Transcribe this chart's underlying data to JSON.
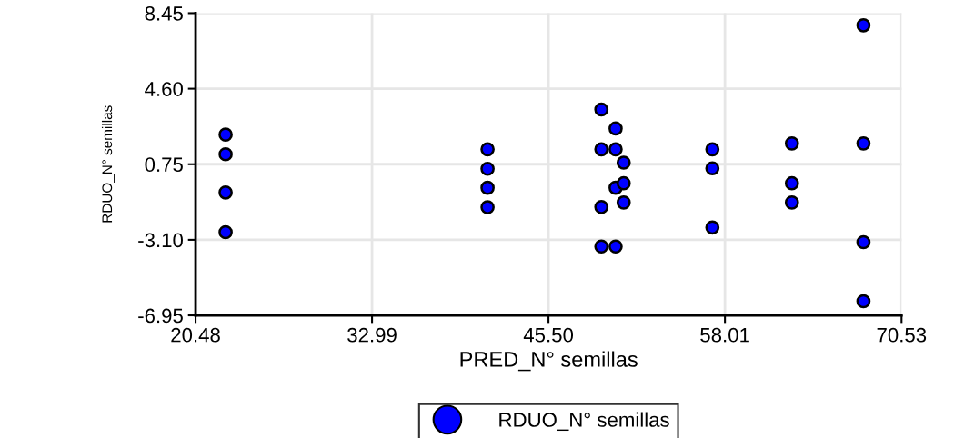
{
  "chart_data": {
    "type": "scatter",
    "xlabel": "PRED_N° semillas",
    "ylabel": "RDUO_N° semillas",
    "x": [
      22.61,
      22.61,
      22.61,
      22.61,
      41.18,
      41.18,
      41.18,
      41.18,
      49.25,
      49.25,
      49.25,
      49.25,
      50.26,
      50.26,
      50.26,
      50.26,
      50.83,
      50.83,
      50.83,
      57.12,
      57.12,
      57.12,
      62.76,
      62.76,
      62.76,
      67.83,
      67.83,
      67.83,
      67.83
    ],
    "series": [
      {
        "name": "RDUO_N° semillas",
        "color": "#0000ff",
        "values": [
          2.26,
          1.26,
          -0.69,
          -2.71,
          1.51,
          0.52,
          -0.45,
          -1.44,
          3.54,
          1.51,
          -1.43,
          -3.44,
          2.57,
          1.51,
          -0.45,
          -3.44,
          0.83,
          -0.22,
          -1.2,
          1.51,
          0.54,
          -2.47,
          1.81,
          -0.22,
          -1.2,
          7.83,
          1.81,
          -3.22,
          -6.23
        ]
      }
    ],
    "xlim": [
      20.48,
      70.53
    ],
    "xticks": [
      {
        "value": 20.48,
        "label": "20.48"
      },
      {
        "value": 32.99,
        "label": "32.99"
      },
      {
        "value": 45.5,
        "label": "45.50"
      },
      {
        "value": 58.01,
        "label": "58.01"
      },
      {
        "value": 70.53,
        "label": "70.53"
      }
    ],
    "ylim": [
      -6.95,
      8.45
    ],
    "yticks": [
      {
        "value": -6.95,
        "label": "-6.95"
      },
      {
        "value": -3.1,
        "label": "-3.10"
      },
      {
        "value": 0.75,
        "label": "0.75"
      },
      {
        "value": 4.6,
        "label": "4.60"
      },
      {
        "value": 8.45,
        "label": "8.45"
      }
    ],
    "grid": true,
    "legend": "bottom",
    "marker": "circle"
  }
}
